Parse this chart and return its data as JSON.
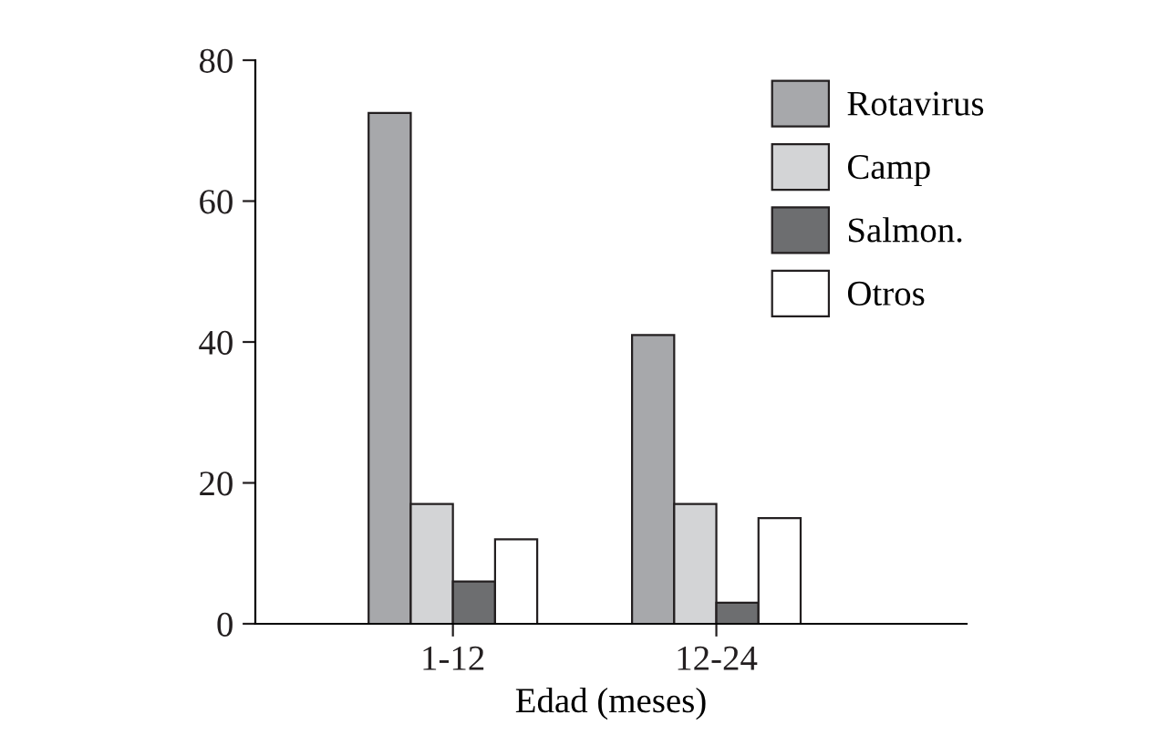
{
  "chart_data": {
    "type": "bar",
    "xlabel": "Edad (meses)",
    "categories": [
      "1-12",
      "12-24"
    ],
    "series": [
      {
        "name": "Rotavirus",
        "color": "#a7a8ab",
        "values": [
          72.5,
          41
        ]
      },
      {
        "name": "Camp",
        "color": "#d3d4d6",
        "values": [
          17,
          17
        ]
      },
      {
        "name": "Salmon.",
        "color": "#6d6e70",
        "values": [
          6,
          3
        ]
      },
      {
        "name": "Otros",
        "color": "#ffffff",
        "values": [
          12,
          15
        ]
      }
    ],
    "ylim": [
      0,
      80
    ],
    "yticks": [
      0,
      20,
      40,
      60,
      80
    ],
    "grid": false,
    "legend": "top right"
  }
}
